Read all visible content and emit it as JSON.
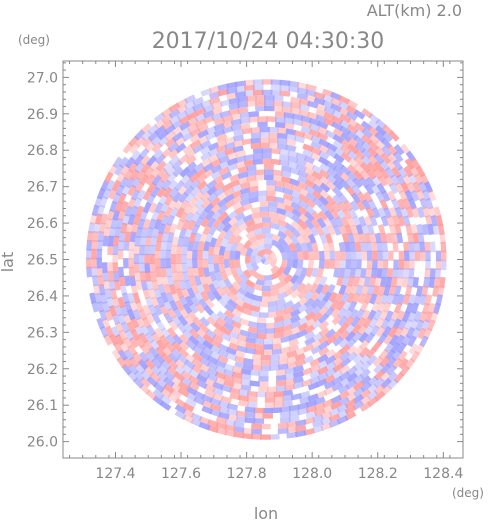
{
  "chart_data": {
    "type": "heatmap",
    "title": "2017/10/24 04:30:30",
    "subtitle": "ALT(km) 2.0",
    "xlabel": "lon",
    "ylabel": "lat",
    "x_unit": "(deg)",
    "y_unit": "(deg)",
    "xlim": [
      127.24,
      128.46
    ],
    "ylim": [
      25.955,
      27.045
    ],
    "x_ticks": [
      "127.4",
      "127.6",
      "127.8",
      "128.0",
      "128.2",
      "128.4"
    ],
    "y_ticks": [
      "26.0",
      "26.1",
      "26.2",
      "26.3",
      "26.4",
      "26.5",
      "26.6",
      "26.7",
      "26.8",
      "26.9",
      "27.0"
    ],
    "center": {
      "lon": 127.86,
      "lat": 26.5
    },
    "radius_deg": 0.55,
    "colors": {
      "positive": "#ff9a9a",
      "negative": "#9a9aff",
      "neutral": "#ffffff",
      "axis": "#888888"
    }
  }
}
